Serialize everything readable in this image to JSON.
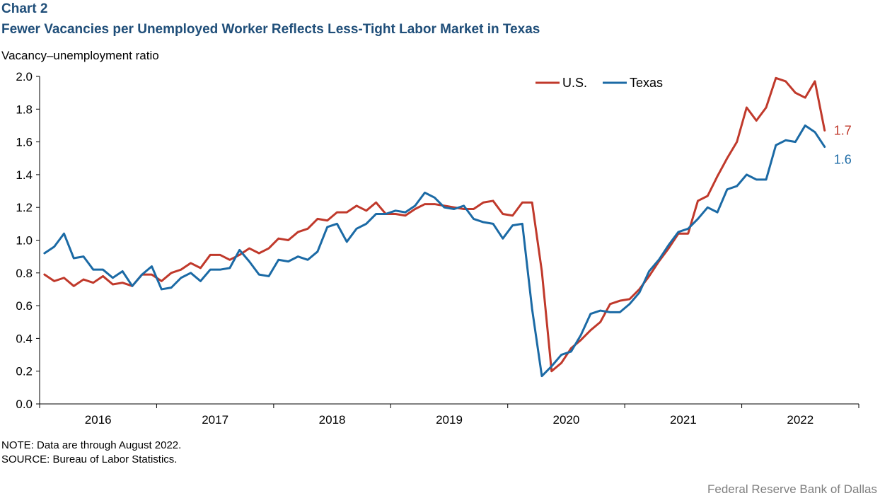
{
  "header": {
    "chart_number": "Chart 2",
    "title": "Fewer Vacancies per Unemployed Worker Reflects Less-Tight Labor Market in Texas"
  },
  "footer": {
    "note": "NOTE: Data are through August 2022.",
    "source": "SOURCE: Bureau of Labor Statistics.",
    "credit": "Federal Reserve Bank of Dallas"
  },
  "colors": {
    "us": "#c0392b",
    "texas": "#1b6aa5",
    "title": "#1f4e79"
  },
  "chart_data": {
    "type": "line",
    "title": "Fewer Vacancies per Unemployed Worker Reflects Less-Tight Labor Market in Texas",
    "ylabel": "Vacancy–unemployment  ratio",
    "xlabel": "",
    "ylim": [
      0,
      2.0
    ],
    "yticks": [
      "0.0",
      "0.2",
      "0.4",
      "0.6",
      "0.8",
      "1.0",
      "1.2",
      "1.4",
      "1.6",
      "1.8",
      "2.0"
    ],
    "x_start": "2016-01",
    "x_end": "2022-08",
    "year_labels": [
      "2016",
      "2017",
      "2018",
      "2019",
      "2020",
      "2021",
      "2022"
    ],
    "legend_position": "top-right",
    "grid": false,
    "series": [
      {
        "name": "U.S.",
        "color": "#c0392b",
        "end_label": "1.7",
        "values": [
          0.79,
          0.75,
          0.77,
          0.72,
          0.76,
          0.74,
          0.78,
          0.73,
          0.74,
          0.72,
          0.79,
          0.79,
          0.75,
          0.8,
          0.82,
          0.86,
          0.83,
          0.91,
          0.91,
          0.88,
          0.91,
          0.95,
          0.92,
          0.95,
          1.01,
          1.0,
          1.05,
          1.07,
          1.13,
          1.12,
          1.17,
          1.17,
          1.21,
          1.18,
          1.23,
          1.16,
          1.16,
          1.15,
          1.19,
          1.22,
          1.22,
          1.21,
          1.2,
          1.19,
          1.19,
          1.23,
          1.24,
          1.16,
          1.15,
          1.23,
          1.23,
          0.81,
          0.2,
          0.25,
          0.34,
          0.39,
          0.45,
          0.5,
          0.61,
          0.63,
          0.64,
          0.7,
          0.78,
          0.87,
          0.95,
          1.04,
          1.04,
          1.24,
          1.27,
          1.39,
          1.5,
          1.6,
          1.81,
          1.73,
          1.81,
          1.99,
          1.97,
          1.9,
          1.87,
          1.97,
          1.67
        ]
      },
      {
        "name": "Texas",
        "color": "#1b6aa5",
        "end_label": "1.6",
        "values": [
          0.92,
          0.96,
          1.04,
          0.89,
          0.9,
          0.82,
          0.82,
          0.77,
          0.81,
          0.72,
          0.79,
          0.84,
          0.7,
          0.71,
          0.77,
          0.8,
          0.75,
          0.82,
          0.82,
          0.83,
          0.94,
          0.87,
          0.79,
          0.78,
          0.88,
          0.87,
          0.9,
          0.88,
          0.93,
          1.08,
          1.1,
          0.99,
          1.07,
          1.1,
          1.16,
          1.16,
          1.18,
          1.17,
          1.21,
          1.29,
          1.26,
          1.2,
          1.19,
          1.21,
          1.13,
          1.11,
          1.1,
          1.01,
          1.09,
          1.1,
          0.58,
          0.17,
          0.23,
          0.3,
          0.32,
          0.42,
          0.55,
          0.57,
          0.56,
          0.56,
          0.61,
          0.68,
          0.81,
          0.88,
          0.97,
          1.05,
          1.07,
          1.13,
          1.2,
          1.17,
          1.31,
          1.33,
          1.4,
          1.37,
          1.37,
          1.58,
          1.61,
          1.6,
          1.7,
          1.66,
          1.57
        ]
      }
    ]
  }
}
